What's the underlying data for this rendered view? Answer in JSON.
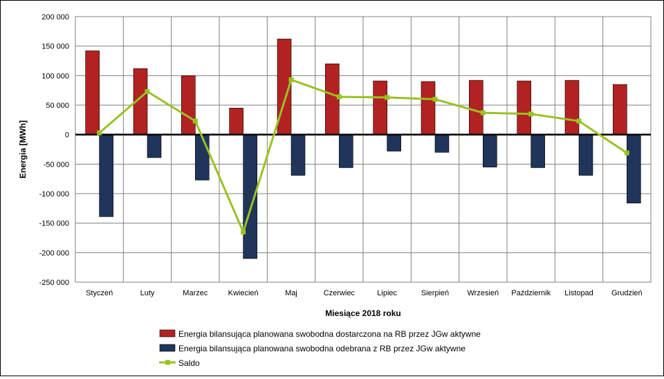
{
  "chart_data": {
    "type": "bar",
    "title": "",
    "xlabel": "Miesiące 2018  roku",
    "ylabel": "Energia [MWh]",
    "ylim": [
      -250000,
      200000
    ],
    "ytick_step": 50000,
    "ytick_labels": [
      "200 000",
      "150 000",
      "100 000",
      "50 000",
      "0",
      "-50 000",
      "-100 000",
      "-150 000",
      "-200 000",
      "-250 000"
    ],
    "grid": true,
    "legend_position": "bottom",
    "categories": [
      "Styczeń",
      "Luty",
      "Marzec",
      "Kwiecień",
      "Maj",
      "Czerwiec",
      "Lipiec",
      "Sierpień",
      "Wrzesień",
      "Październik",
      "Listopad",
      "Grudzień"
    ],
    "series": [
      {
        "name": "Energia bilansująca planowana swobodna dostarczona na RB przez JGw aktywne",
        "type": "bar",
        "color": "#b22222",
        "values": [
          142000,
          112000,
          100000,
          45000,
          162000,
          120000,
          91000,
          90000,
          92000,
          91000,
          92000,
          85000
        ]
      },
      {
        "name": "Energia bilansująca planowana swobodna odebrana z RB przez JGw aktywne",
        "type": "bar",
        "color": "#1f3559",
        "values": [
          -139000,
          -39000,
          -77000,
          -210000,
          -69000,
          -56000,
          -28000,
          -30000,
          -55000,
          -56000,
          -69000,
          -116000
        ]
      },
      {
        "name": "Saldo",
        "type": "line",
        "color": "#99c222",
        "values": [
          3000,
          73000,
          23000,
          -165000,
          93000,
          64000,
          63000,
          60000,
          37000,
          35000,
          23000,
          -31000
        ]
      }
    ]
  }
}
